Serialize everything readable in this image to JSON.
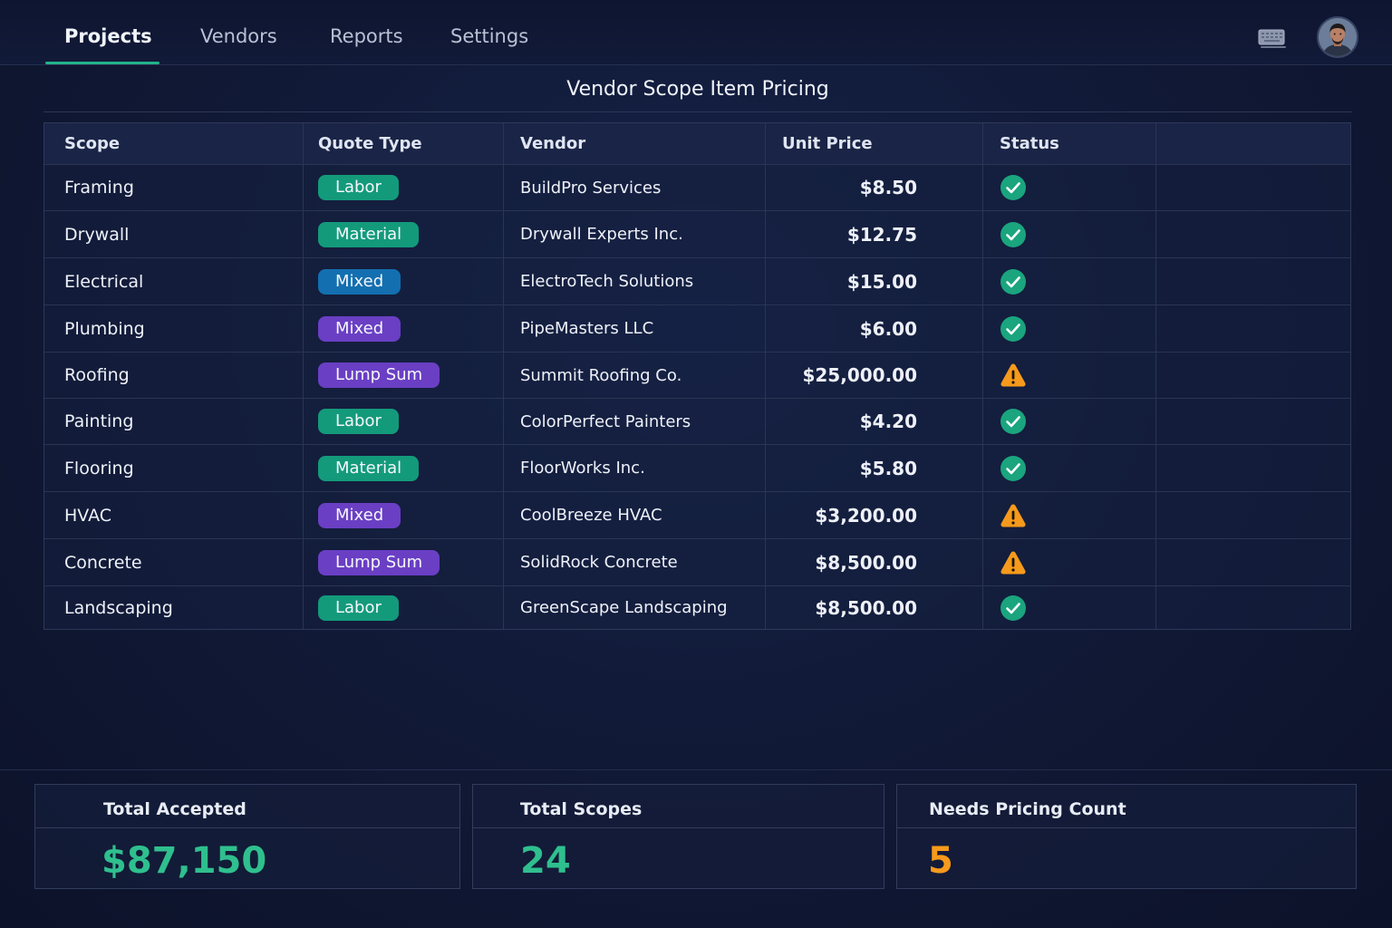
{
  "nav": {
    "tabs": [
      {
        "label": "Projects",
        "active": true
      },
      {
        "label": "Vendors",
        "active": false
      },
      {
        "label": "Reports",
        "active": false
      },
      {
        "label": "Settings",
        "active": false
      }
    ],
    "icon": "keyboard-icon",
    "avatar": "user-avatar"
  },
  "page": {
    "title": "Vendor Scope Item Pricing"
  },
  "table": {
    "columns": [
      "Scope",
      "Quote Type",
      "Vendor",
      "Unit Price",
      "Status"
    ],
    "rows": [
      {
        "scope": "Framing",
        "quote_type": "Labor",
        "vendor": "BuildPro Services",
        "unit_price": "$8.50",
        "status": "accepted"
      },
      {
        "scope": "Drywall",
        "quote_type": "Material",
        "vendor": "Drywall Experts Inc.",
        "unit_price": "$12.75",
        "status": "accepted"
      },
      {
        "scope": "Electrical",
        "quote_type": "Mixed",
        "vendor": "ElectroTech Solutions",
        "unit_price": "$15.00",
        "status": "accepted"
      },
      {
        "scope": "Plumbing",
        "quote_type": "Mixed",
        "vendor": "PipeMasters LLC",
        "unit_price": "$6.00",
        "status": "accepted"
      },
      {
        "scope": "Roofing",
        "quote_type": "Lump Sum",
        "vendor": "Summit Roofing Co.",
        "unit_price": "$25,000.00",
        "status": "warning"
      },
      {
        "scope": "Painting",
        "quote_type": "Labor",
        "vendor": "ColorPerfect Painters",
        "unit_price": "$4.20",
        "status": "accepted"
      },
      {
        "scope": "Flooring",
        "quote_type": "Material",
        "vendor": "FloorWorks Inc.",
        "unit_price": "$5.80",
        "status": "accepted"
      },
      {
        "scope": "HVAC",
        "quote_type": "Mixed",
        "vendor": "CoolBreeze HVAC",
        "unit_price": "$3,200.00",
        "status": "warning"
      },
      {
        "scope": "Concrete",
        "quote_type": "Lump Sum",
        "vendor": "SolidRock Concrete",
        "unit_price": "$8,500.00",
        "status": "warning"
      },
      {
        "scope": "Landscaping",
        "quote_type": "Labor",
        "vendor": "GreenScape Landscaping",
        "unit_price": "$8,500.00",
        "status": "accepted"
      }
    ]
  },
  "badge_colors": {
    "Labor": "#139a7b",
    "Material": "#139a7b",
    "Lump Sum": "#6a3fc4",
    "Mixed": [
      "#136fb0",
      "#6a3fc4",
      "#6a3fc4"
    ]
  },
  "status_colors": {
    "accepted": "#1aa57e",
    "warning": "#f59a1c"
  },
  "summary": [
    {
      "label": "Total Accepted",
      "value": "$87,150",
      "color": "#2fbf8e"
    },
    {
      "label": "Total Scopes",
      "value": "24",
      "color": "#2fbf8e"
    },
    {
      "label": "Needs Pricing Count",
      "value": "5",
      "color": "#f59a1c"
    }
  ]
}
